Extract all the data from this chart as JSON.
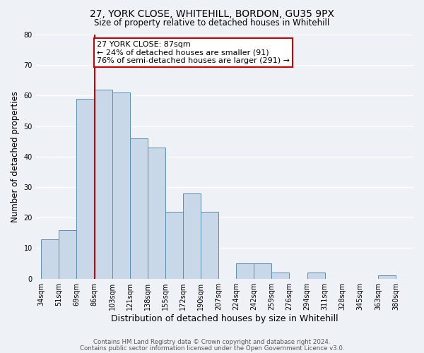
{
  "title": "27, YORK CLOSE, WHITEHILL, BORDON, GU35 9PX",
  "subtitle": "Size of property relative to detached houses in Whitehill",
  "xlabel": "Distribution of detached houses by size in Whitehill",
  "ylabel": "Number of detached properties",
  "bin_labels": [
    "34sqm",
    "51sqm",
    "69sqm",
    "86sqm",
    "103sqm",
    "121sqm",
    "138sqm",
    "155sqm",
    "172sqm",
    "190sqm",
    "207sqm",
    "224sqm",
    "242sqm",
    "259sqm",
    "276sqm",
    "294sqm",
    "311sqm",
    "328sqm",
    "345sqm",
    "363sqm",
    "380sqm"
  ],
  "bar_heights": [
    13,
    16,
    59,
    62,
    61,
    46,
    43,
    22,
    28,
    22,
    0,
    5,
    5,
    2,
    0,
    2,
    0,
    0,
    0,
    1,
    0
  ],
  "bar_color": "#c8d8e8",
  "bar_edge_color": "#5b8db0",
  "property_line_index": 3,
  "ylim": [
    0,
    80
  ],
  "yticks": [
    0,
    10,
    20,
    30,
    40,
    50,
    60,
    70,
    80
  ],
  "annotation_line1": "27 YORK CLOSE: 87sqm",
  "annotation_line2": "← 24% of detached houses are smaller (91)",
  "annotation_line3": "76% of semi-detached houses are larger (291) →",
  "footnote1": "Contains HM Land Registry data © Crown copyright and database right 2024.",
  "footnote2": "Contains public sector information licensed under the Open Government Licence v3.0.",
  "background_color": "#eef2f7",
  "grid_color": "#ffffff",
  "annotation_box_facecolor": "#ffffff",
  "annotation_box_edgecolor": "#cc0000",
  "property_line_color": "#cc0000",
  "title_fontsize": 10,
  "subtitle_fontsize": 8.5,
  "ylabel_fontsize": 8.5,
  "xlabel_fontsize": 9,
  "tick_fontsize": 7,
  "footnote_fontsize": 6.2,
  "annotation_fontsize": 8
}
